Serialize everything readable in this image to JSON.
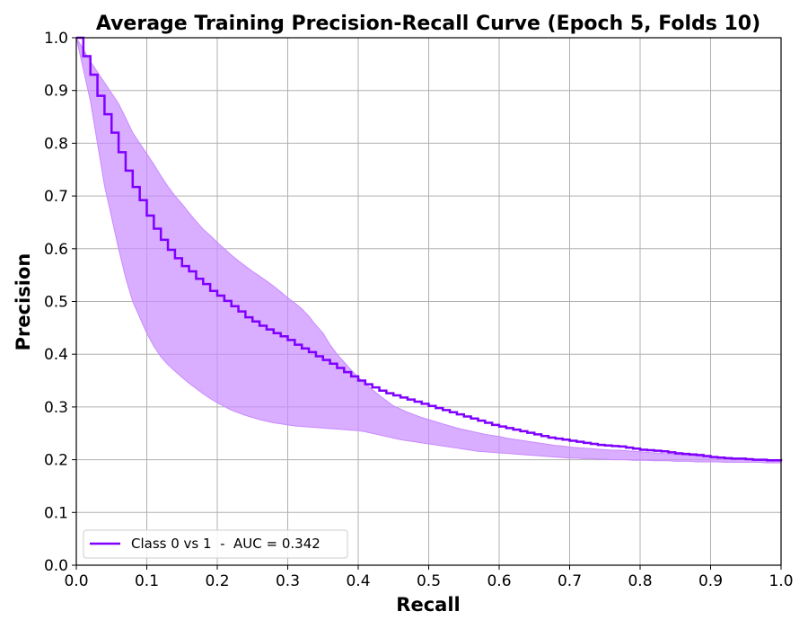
{
  "chart_data": {
    "type": "line",
    "title": "Average Training Precision-Recall Curve (Epoch 5, Folds 10)",
    "xlabel": "Recall",
    "ylabel": "Precision",
    "xlim": [
      0.0,
      1.0
    ],
    "ylim": [
      0.0,
      1.0
    ],
    "xticks": [
      0.0,
      0.1,
      0.2,
      0.3,
      0.4,
      0.5,
      0.6,
      0.7,
      0.8,
      0.9,
      1.0
    ],
    "xtick_labels": [
      "0.0",
      "0.1",
      "0.2",
      "0.3",
      "0.4",
      "0.5",
      "0.6",
      "0.7",
      "0.8",
      "0.9",
      "1.0"
    ],
    "yticks": [
      0.0,
      0.1,
      0.2,
      0.3,
      0.4,
      0.5,
      0.6,
      0.7,
      0.8,
      0.9,
      1.0
    ],
    "ytick_labels": [
      "0.0",
      "0.1",
      "0.2",
      "0.3",
      "0.4",
      "0.5",
      "0.6",
      "0.7",
      "0.8",
      "0.9",
      "1.0"
    ],
    "grid": true,
    "legend_position": "bottom-left",
    "series": [
      {
        "name": "Class 0 vs 1  -  AUC = 0.342",
        "color": "#7f00ff",
        "band_color": "#c98aff",
        "step": true,
        "recall": [
          0.0,
          0.01,
          0.02,
          0.03,
          0.04,
          0.05,
          0.06,
          0.07,
          0.08,
          0.09,
          0.1,
          0.11,
          0.12,
          0.13,
          0.14,
          0.15,
          0.16,
          0.17,
          0.18,
          0.19,
          0.2,
          0.21,
          0.22,
          0.23,
          0.24,
          0.25,
          0.26,
          0.27,
          0.28,
          0.29,
          0.3,
          0.31,
          0.32,
          0.33,
          0.34,
          0.35,
          0.36,
          0.37,
          0.38,
          0.39,
          0.4,
          0.41,
          0.42,
          0.43,
          0.44,
          0.45,
          0.46,
          0.47,
          0.48,
          0.49,
          0.5,
          0.51,
          0.52,
          0.53,
          0.54,
          0.55,
          0.56,
          0.57,
          0.58,
          0.59,
          0.6,
          0.61,
          0.62,
          0.63,
          0.64,
          0.65,
          0.66,
          0.67,
          0.68,
          0.69,
          0.7,
          0.71,
          0.72,
          0.73,
          0.74,
          0.75,
          0.76,
          0.77,
          0.78,
          0.79,
          0.8,
          0.81,
          0.82,
          0.83,
          0.84,
          0.85,
          0.86,
          0.87,
          0.88,
          0.89,
          0.9,
          0.91,
          0.92,
          0.93,
          0.94,
          0.95,
          0.96,
          0.97,
          0.98,
          0.99,
          1.0
        ],
        "precision": [
          1.0,
          0.965,
          0.93,
          0.89,
          0.855,
          0.82,
          0.783,
          0.748,
          0.717,
          0.692,
          0.663,
          0.638,
          0.617,
          0.598,
          0.582,
          0.567,
          0.557,
          0.543,
          0.533,
          0.52,
          0.511,
          0.501,
          0.491,
          0.481,
          0.47,
          0.462,
          0.454,
          0.447,
          0.44,
          0.434,
          0.427,
          0.418,
          0.411,
          0.404,
          0.396,
          0.389,
          0.382,
          0.374,
          0.366,
          0.358,
          0.35,
          0.343,
          0.337,
          0.331,
          0.326,
          0.322,
          0.318,
          0.314,
          0.31,
          0.306,
          0.302,
          0.298,
          0.294,
          0.29,
          0.286,
          0.282,
          0.278,
          0.274,
          0.27,
          0.266,
          0.263,
          0.26,
          0.257,
          0.254,
          0.251,
          0.248,
          0.245,
          0.242,
          0.24,
          0.238,
          0.236,
          0.234,
          0.232,
          0.23,
          0.228,
          0.227,
          0.226,
          0.225,
          0.223,
          0.221,
          0.219,
          0.218,
          0.217,
          0.216,
          0.214,
          0.212,
          0.211,
          0.21,
          0.209,
          0.207,
          0.205,
          0.204,
          0.203,
          0.202,
          0.202,
          0.201,
          0.2,
          0.2,
          0.199,
          0.199,
          0.197
        ],
        "band_upper": [
          1.0,
          0.978,
          0.955,
          0.935,
          0.915,
          0.895,
          0.875,
          0.848,
          0.82,
          0.8,
          0.78,
          0.76,
          0.738,
          0.718,
          0.7,
          0.685,
          0.668,
          0.652,
          0.637,
          0.625,
          0.612,
          0.6,
          0.588,
          0.577,
          0.567,
          0.557,
          0.548,
          0.539,
          0.529,
          0.518,
          0.507,
          0.497,
          0.486,
          0.472,
          0.455,
          0.44,
          0.418,
          0.4,
          0.385,
          0.37,
          0.356,
          0.344,
          0.333,
          0.322,
          0.312,
          0.302,
          0.296,
          0.29,
          0.285,
          0.28,
          0.276,
          0.272,
          0.268,
          0.264,
          0.26,
          0.257,
          0.254,
          0.251,
          0.248,
          0.246,
          0.244,
          0.241,
          0.239,
          0.237,
          0.235,
          0.233,
          0.231,
          0.229,
          0.227,
          0.226,
          0.224,
          0.223,
          0.222,
          0.221,
          0.22,
          0.219,
          0.218,
          0.218,
          0.217,
          0.216,
          0.215,
          0.214,
          0.213,
          0.212,
          0.211,
          0.21,
          0.209,
          0.208,
          0.207,
          0.206,
          0.205,
          0.204,
          0.203,
          0.202,
          0.202,
          0.201,
          0.2,
          0.2,
          0.199,
          0.199,
          0.198
        ],
        "band_lower": [
          1.0,
          0.94,
          0.88,
          0.8,
          0.72,
          0.66,
          0.6,
          0.545,
          0.5,
          0.47,
          0.44,
          0.415,
          0.395,
          0.38,
          0.368,
          0.356,
          0.345,
          0.335,
          0.325,
          0.316,
          0.308,
          0.301,
          0.294,
          0.289,
          0.284,
          0.28,
          0.276,
          0.273,
          0.27,
          0.268,
          0.266,
          0.264,
          0.263,
          0.262,
          0.261,
          0.26,
          0.259,
          0.258,
          0.257,
          0.256,
          0.255,
          0.253,
          0.25,
          0.247,
          0.244,
          0.241,
          0.238,
          0.236,
          0.234,
          0.232,
          0.23,
          0.228,
          0.226,
          0.224,
          0.222,
          0.22,
          0.218,
          0.216,
          0.215,
          0.214,
          0.213,
          0.212,
          0.211,
          0.21,
          0.209,
          0.208,
          0.207,
          0.206,
          0.205,
          0.204,
          0.203,
          0.203,
          0.202,
          0.202,
          0.201,
          0.201,
          0.2,
          0.2,
          0.2,
          0.199,
          0.199,
          0.199,
          0.198,
          0.198,
          0.198,
          0.197,
          0.197,
          0.197,
          0.196,
          0.196,
          0.196,
          0.196,
          0.195,
          0.195,
          0.195,
          0.195,
          0.195,
          0.195,
          0.194,
          0.194,
          0.194
        ]
      }
    ]
  }
}
